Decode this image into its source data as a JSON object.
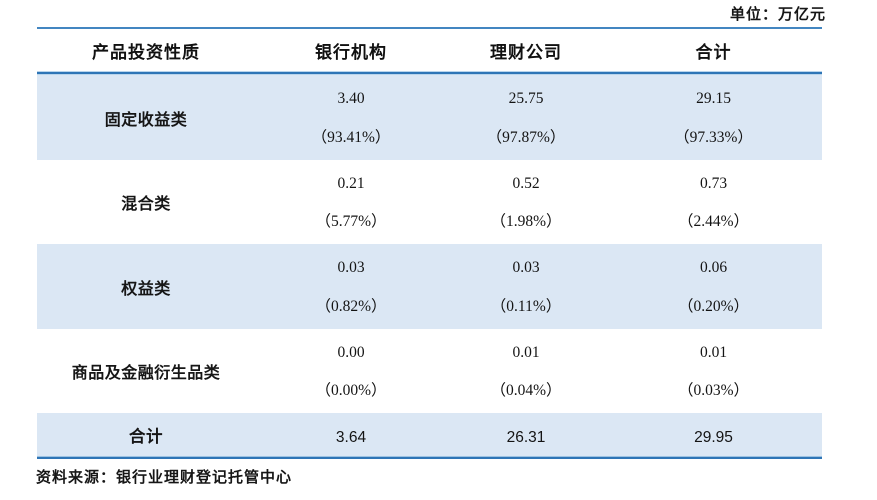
{
  "unit_label": "单位：万亿元",
  "table": {
    "columns": [
      "产品投资性质",
      "银行机构",
      "理财公司",
      "合计"
    ],
    "rows": [
      {
        "label": "固定收益类",
        "bank_value": "3.40",
        "bank_pct": "（93.41%）",
        "company_value": "25.75",
        "company_pct": "（97.87%）",
        "total_value": "29.15",
        "total_pct": "（97.33%）"
      },
      {
        "label": "混合类",
        "bank_value": "0.21",
        "bank_pct": "（5.77%）",
        "company_value": "0.52",
        "company_pct": "（1.98%）",
        "total_value": "0.73",
        "total_pct": "（2.44%）"
      },
      {
        "label": "权益类",
        "bank_value": "0.03",
        "bank_pct": "（0.82%）",
        "company_value": "0.03",
        "company_pct": "（0.11%）",
        "total_value": "0.06",
        "total_pct": "（0.20%）"
      },
      {
        "label": "商品及金融衍生品类",
        "bank_value": "0.00",
        "bank_pct": "（0.00%）",
        "company_value": "0.01",
        "company_pct": "（0.04%）",
        "total_value": "0.01",
        "total_pct": "（0.03%）"
      }
    ],
    "total_row": {
      "label": "合计",
      "bank_value": "3.64",
      "company_value": "26.31",
      "total_value": "29.95"
    }
  },
  "source_note": "资料来源：银行业理财登记托管中心",
  "colors": {
    "stripe_blue": "#dbe7f4",
    "border_dark_blue": "#2e75b6",
    "border_light_blue": "#b9d5ec",
    "top_line_blue": "#4386c1"
  }
}
